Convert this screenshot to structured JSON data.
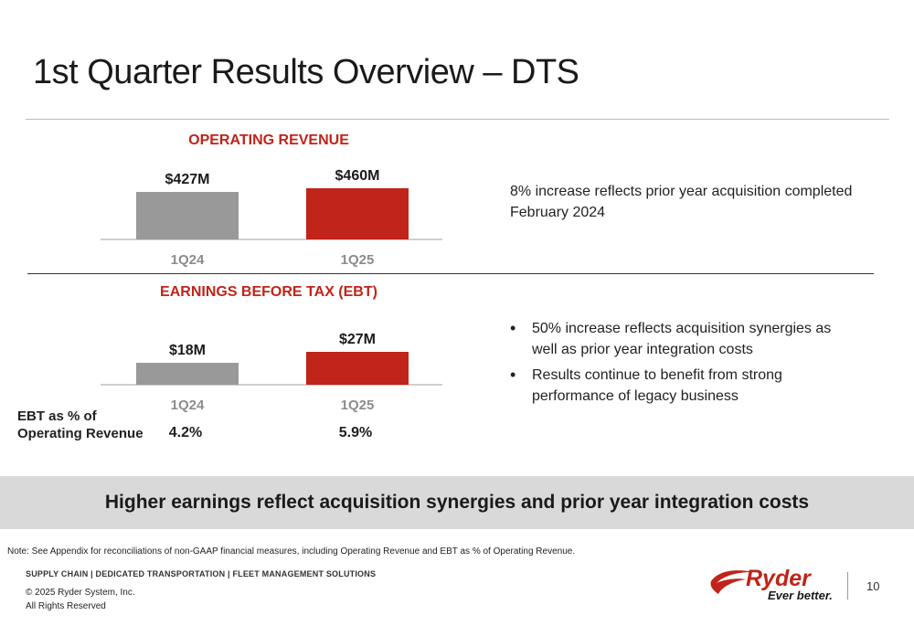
{
  "slide": {
    "title": "1st Quarter Results Overview – DTS",
    "banner": "Higher earnings reflect acquisition synergies and prior year integration costs",
    "note": "Note: See Appendix for reconciliations of non-GAAP financial measures, including Operating Revenue and EBT as % of Operating Revenue.",
    "tagline": "SUPPLY CHAIN | DEDICATED TRANSPORTATION | FLEET MANAGEMENT SOLUTIONS",
    "copyright_line1": "© 2025 Ryder System, Inc.",
    "copyright_line2": "All Rights Reserved",
    "page_number": "10",
    "logo_text": "Ryder",
    "logo_tagline": "Ever better.",
    "accent_color": "#c0241a"
  },
  "operating_revenue": {
    "commentary": "8% increase reflects prior year acquisition completed February 2024"
  },
  "ebt": {
    "bullets": [
      "50% increase reflects acquisition synergies as well as prior year integration costs",
      "Results continue to benefit from strong performance of legacy business"
    ],
    "pct_label_line1": "EBT as % of",
    "pct_label_line2": "Operating Revenue",
    "pct_values": [
      "4.2%",
      "5.9%"
    ]
  },
  "chart_data": [
    {
      "type": "bar",
      "title": "OPERATING REVENUE",
      "categories": [
        "1Q24",
        "1Q25"
      ],
      "values": [
        427,
        460
      ],
      "data_labels": [
        "$427M",
        "$460M"
      ],
      "colors": [
        "#999999",
        "#c0241a"
      ],
      "title_color": "#c0241a"
    },
    {
      "type": "bar",
      "title": "EARNINGS BEFORE TAX (EBT)",
      "categories": [
        "1Q24",
        "1Q25"
      ],
      "values": [
        18,
        27
      ],
      "data_labels": [
        "$18M",
        "$27M"
      ],
      "colors": [
        "#999999",
        "#c0241a"
      ],
      "title_color": "#c0241a"
    }
  ]
}
